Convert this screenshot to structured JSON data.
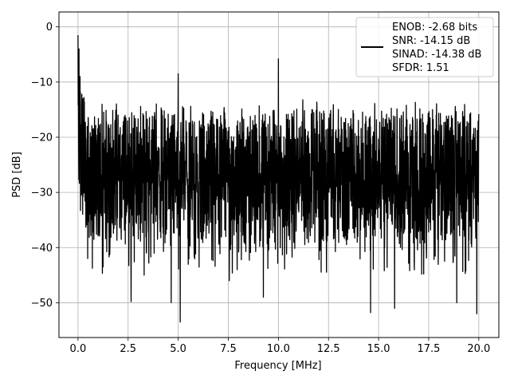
{
  "chart_data": {
    "type": "line",
    "title": "",
    "xlabel": "Frequency [MHz]",
    "ylabel": "PSD [dB]",
    "xlim": [
      -0.95,
      21.0
    ],
    "ylim": [
      -56.3,
      2.7
    ],
    "xticks": [
      0.0,
      2.5,
      5.0,
      7.5,
      10.0,
      12.5,
      15.0,
      17.5,
      20.0
    ],
    "xtick_labels": [
      "0.0",
      "2.5",
      "5.0",
      "7.5",
      "10.0",
      "12.5",
      "15.0",
      "17.5",
      "20.0"
    ],
    "yticks": [
      0,
      -10,
      -20,
      -30,
      -40,
      -50
    ],
    "ytick_labels": [
      "0",
      "−10",
      "−20",
      "−30",
      "−40",
      "−50"
    ],
    "grid": true,
    "legend_position": "upper-right",
    "legend_lines": [
      "ENOB: -2.68 bits",
      "SNR: -14.15 dB",
      "SINAD: -14.38 dB",
      "SFDR: 1.51"
    ],
    "series": [
      {
        "color": "#000000",
        "spikes": [
          {
            "x": 0.0,
            "y": -1.5
          },
          {
            "x": 0.05,
            "y": -4.0
          },
          {
            "x": 0.1,
            "y": -9.0
          },
          {
            "x": 5.0,
            "y": -8.5
          },
          {
            "x": 10.0,
            "y": -5.8
          },
          {
            "x": 20.0,
            "y": -15.8
          }
        ],
        "dips": [
          {
            "x": 1.25,
            "y": -43.5
          },
          {
            "x": 2.65,
            "y": -49.8
          },
          {
            "x": 3.3,
            "y": -45.0
          },
          {
            "x": 4.65,
            "y": -50.0
          },
          {
            "x": 5.1,
            "y": -53.5
          },
          {
            "x": 7.55,
            "y": -46.0
          },
          {
            "x": 9.25,
            "y": -49.0
          },
          {
            "x": 14.6,
            "y": -51.8
          },
          {
            "x": 15.8,
            "y": -51.0
          },
          {
            "x": 18.9,
            "y": -50.0
          },
          {
            "x": 19.9,
            "y": -52.0
          }
        ]
      }
    ]
  }
}
